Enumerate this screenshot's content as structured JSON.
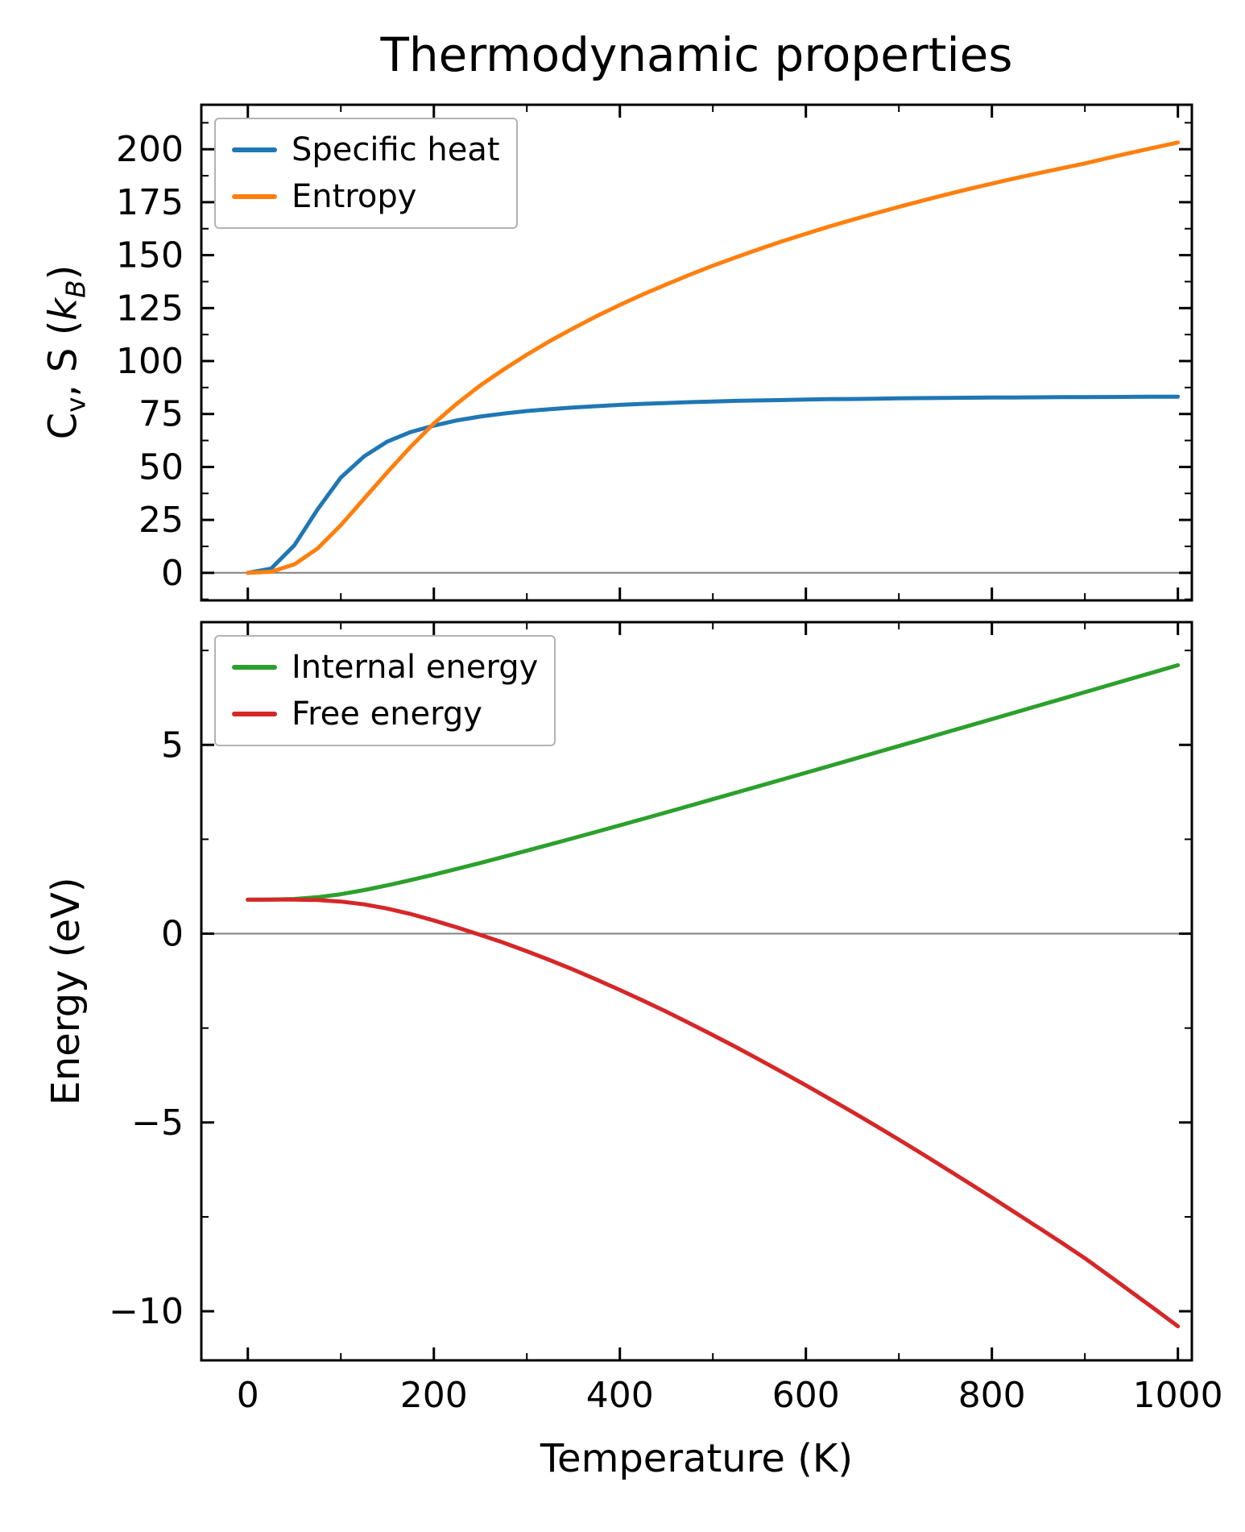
{
  "title": "Thermodynamic properties",
  "chart_data": [
    {
      "type": "line",
      "ylabel": "Cv, S (kB)",
      "ylabel_parts": {
        "main": "C",
        "main_sub": "v",
        "mid": ", S (",
        "k": "k",
        "k_sub": "B",
        "close": ")"
      },
      "x": [
        0,
        25,
        50,
        75,
        100,
        125,
        150,
        175,
        200,
        225,
        250,
        275,
        300,
        325,
        350,
        375,
        400,
        425,
        450,
        475,
        500,
        525,
        550,
        575,
        600,
        625,
        650,
        675,
        700,
        725,
        750,
        775,
        800,
        825,
        850,
        875,
        900,
        925,
        950,
        975,
        1000
      ],
      "series": [
        {
          "name": "Specific heat",
          "color": "#1f77b4",
          "values": [
            0,
            2,
            13,
            30,
            45,
            55,
            62,
            66.5,
            69.5,
            72,
            73.8,
            75.2,
            76.4,
            77.3,
            78.1,
            78.7,
            79.3,
            79.8,
            80.2,
            80.6,
            80.9,
            81.2,
            81.4,
            81.6,
            81.8,
            82,
            82.1,
            82.25,
            82.4,
            82.5,
            82.6,
            82.7,
            82.75,
            82.8,
            82.9,
            82.95,
            83,
            83.05,
            83.1,
            83.15,
            83.2
          ]
        },
        {
          "name": "Entropy",
          "color": "#ff7f0e",
          "values": [
            0,
            0.5,
            4,
            11.5,
            22.5,
            35,
            47.5,
            59.5,
            70.5,
            80,
            88.5,
            96,
            103,
            109.5,
            115.5,
            121.2,
            126.5,
            131.5,
            136.2,
            140.7,
            145,
            149,
            152.9,
            156.6,
            160.1,
            163.5,
            166.7,
            169.8,
            172.8,
            175.7,
            178.5,
            181.2,
            183.8,
            186.3,
            188.7,
            191,
            193.3,
            195.9,
            198.4,
            200.8,
            203.2
          ]
        }
      ],
      "xlim": [
        -50,
        1015
      ],
      "ylim": [
        -13,
        221
      ],
      "xticks": [
        0,
        200,
        400,
        600,
        800,
        1000
      ],
      "xtick_labels": [
        "0",
        "200",
        "400",
        "600",
        "800",
        "1000"
      ],
      "yticks": [
        0,
        25,
        50,
        75,
        100,
        125,
        150,
        175,
        200
      ],
      "ytick_labels": [
        "0",
        "25",
        "50",
        "75",
        "100",
        "125",
        "150",
        "175",
        "200"
      ],
      "show_xtick_labels": false,
      "zero_line": true,
      "grid": false,
      "legend": {
        "position": "upper left"
      }
    },
    {
      "type": "line",
      "xlabel": "Temperature (K)",
      "ylabel": "Energy (eV)",
      "x": [
        0,
        25,
        50,
        75,
        100,
        125,
        150,
        175,
        200,
        225,
        250,
        275,
        300,
        325,
        350,
        375,
        400,
        425,
        450,
        475,
        500,
        525,
        550,
        575,
        600,
        625,
        650,
        675,
        700,
        725,
        750,
        775,
        800,
        825,
        850,
        875,
        900,
        925,
        950,
        975,
        1000
      ],
      "series": [
        {
          "name": "Internal energy",
          "color": "#2ca02c",
          "values": [
            0.9,
            0.902,
            0.918,
            0.965,
            1.045,
            1.153,
            1.279,
            1.418,
            1.564,
            1.717,
            1.873,
            2.034,
            2.197,
            2.363,
            2.53,
            2.699,
            2.869,
            3.041,
            3.213,
            3.386,
            3.56,
            3.735,
            3.91,
            4.086,
            4.262,
            4.438,
            4.615,
            4.792,
            4.969,
            5.147,
            5.325,
            5.503,
            5.681,
            5.859,
            6.038,
            6.216,
            6.395,
            6.574,
            6.753,
            6.932,
            7.111
          ]
        },
        {
          "name": "Free energy",
          "color": "#d62728",
          "values": [
            0.9,
            0.901,
            0.901,
            0.891,
            0.851,
            0.776,
            0.665,
            0.521,
            0.349,
            0.166,
            -0.034,
            -0.241,
            -0.466,
            -0.704,
            -0.953,
            -1.218,
            -1.491,
            -1.775,
            -2.068,
            -2.373,
            -2.687,
            -3.006,
            -3.336,
            -3.674,
            -4.015,
            -4.367,
            -4.722,
            -5.084,
            -5.454,
            -5.829,
            -6.211,
            -6.598,
            -6.989,
            -7.386,
            -7.782,
            -8.185,
            -8.596,
            -9.04,
            -9.49,
            -9.94,
            -10.4
          ]
        }
      ],
      "xlim": [
        -50,
        1015
      ],
      "ylim": [
        -11.3,
        8.25
      ],
      "xticks": [
        0,
        200,
        400,
        600,
        800,
        1000
      ],
      "xtick_labels": [
        "0",
        "200",
        "400",
        "600",
        "800",
        "1000"
      ],
      "yticks": [
        -10,
        -5,
        0,
        5
      ],
      "ytick_labels": [
        "−10",
        "−5",
        "0",
        "5"
      ],
      "show_xtick_labels": true,
      "zero_line": true,
      "grid": false,
      "legend": {
        "position": "upper left"
      }
    }
  ]
}
